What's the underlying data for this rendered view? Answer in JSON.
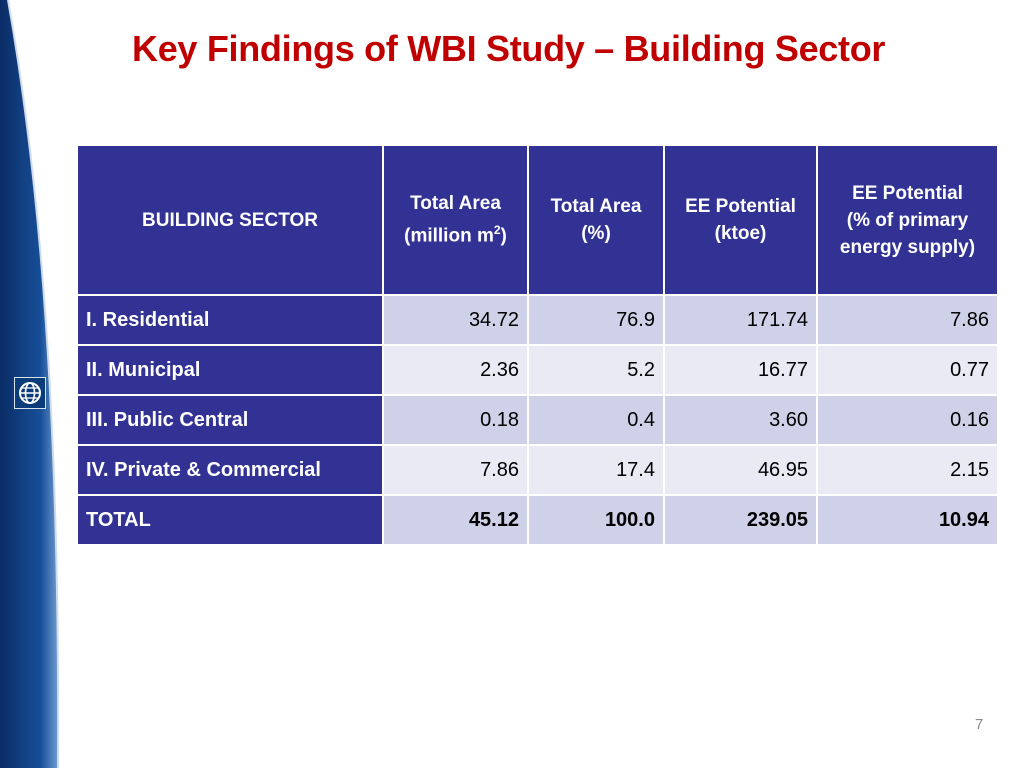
{
  "title": "Key Findings of WBI Study – Building Sector",
  "table": {
    "headers": [
      {
        "main": "BUILDING SECTOR"
      },
      {
        "main": "Total Area",
        "sub": "(million m",
        "sup": "2",
        "suffix": ")"
      },
      {
        "main": "Total Area",
        "sub": "(%)"
      },
      {
        "main": "EE Potential",
        "sub": "(ktoe)"
      },
      {
        "main": "EE Potential",
        "sub": "(% of primary",
        "sub2": "energy supply)"
      }
    ],
    "rows": [
      {
        "sector": "I. Residential",
        "area_m2": "34.72",
        "area_pct": "76.9",
        "ee_ktoe": "171.74",
        "ee_pct": "7.86"
      },
      {
        "sector": "II.  Municipal",
        "area_m2": "2.36",
        "area_pct": "5.2",
        "ee_ktoe": "16.77",
        "ee_pct": "0.77"
      },
      {
        "sector": "III.  Public Central",
        "area_m2": "0.18",
        "area_pct": "0.4",
        "ee_ktoe": "3.60",
        "ee_pct": "0.16"
      },
      {
        "sector": "IV.  Private & Commercial",
        "area_m2": "7.86",
        "area_pct": "17.4",
        "ee_ktoe": "46.95",
        "ee_pct": "2.15"
      },
      {
        "sector": "TOTAL",
        "area_m2": "45.12",
        "area_pct": "100.0",
        "ee_ktoe": "239.05",
        "ee_pct": "10.94"
      }
    ]
  },
  "page_number": "7",
  "logo_icon": "globe-icon",
  "colors": {
    "title": "#c00000",
    "header_bg": "#323294",
    "row_alt_1": "#cfd1e8",
    "row_alt_2": "#e9eaf4"
  }
}
